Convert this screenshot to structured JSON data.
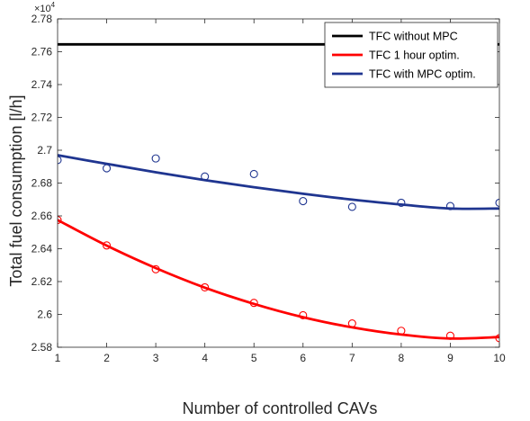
{
  "chart_data": {
    "type": "line",
    "title": "",
    "xlabel": "Number of controlled CAVs",
    "ylabel": "Total fuel consumption [l/h]",
    "y_multiplier_label": "×10",
    "y_multiplier_exponent": "4",
    "xlim": [
      1,
      10
    ],
    "ylim": [
      2.58,
      2.78
    ],
    "x_ticks": [
      1,
      2,
      3,
      4,
      5,
      6,
      7,
      8,
      9,
      10
    ],
    "y_ticks": [
      2.58,
      2.6,
      2.62,
      2.64,
      2.66,
      2.68,
      2.7,
      2.72,
      2.74,
      2.76,
      2.78
    ],
    "grid": false,
    "legend_position": "top-right",
    "series": [
      {
        "name": "TFC without MPC",
        "color": "#000000",
        "style": "line",
        "x": [
          1,
          10
        ],
        "y": [
          2.7645,
          2.7645
        ]
      },
      {
        "name": "TFC 1 hour optim.",
        "color": "#ff0000",
        "style": "line+markers",
        "x": [
          1,
          2,
          3,
          4,
          5,
          6,
          7,
          8,
          9,
          10
        ],
        "y": [
          2.6575,
          2.642,
          2.6275,
          2.6165,
          2.607,
          2.5995,
          2.5945,
          2.59,
          2.587,
          2.5855
        ],
        "fit_y": [
          2.6575,
          2.6419,
          2.6282,
          2.6163,
          2.6064,
          2.5983,
          2.5921,
          2.5877,
          2.5853,
          2.5862
        ]
      },
      {
        "name": "TFC with MPC optim.",
        "color": "#1f3590",
        "style": "line+markers",
        "x": [
          1,
          2,
          3,
          4,
          5,
          6,
          7,
          8,
          9,
          10
        ],
        "y": [
          2.694,
          2.689,
          2.695,
          2.684,
          2.6855,
          2.669,
          2.6655,
          2.668,
          2.666,
          2.668
        ],
        "fit_y": [
          2.697,
          2.6917,
          2.6866,
          2.6818,
          2.6775,
          2.6735,
          2.6699,
          2.6669,
          2.6645,
          2.6645
        ]
      }
    ]
  }
}
